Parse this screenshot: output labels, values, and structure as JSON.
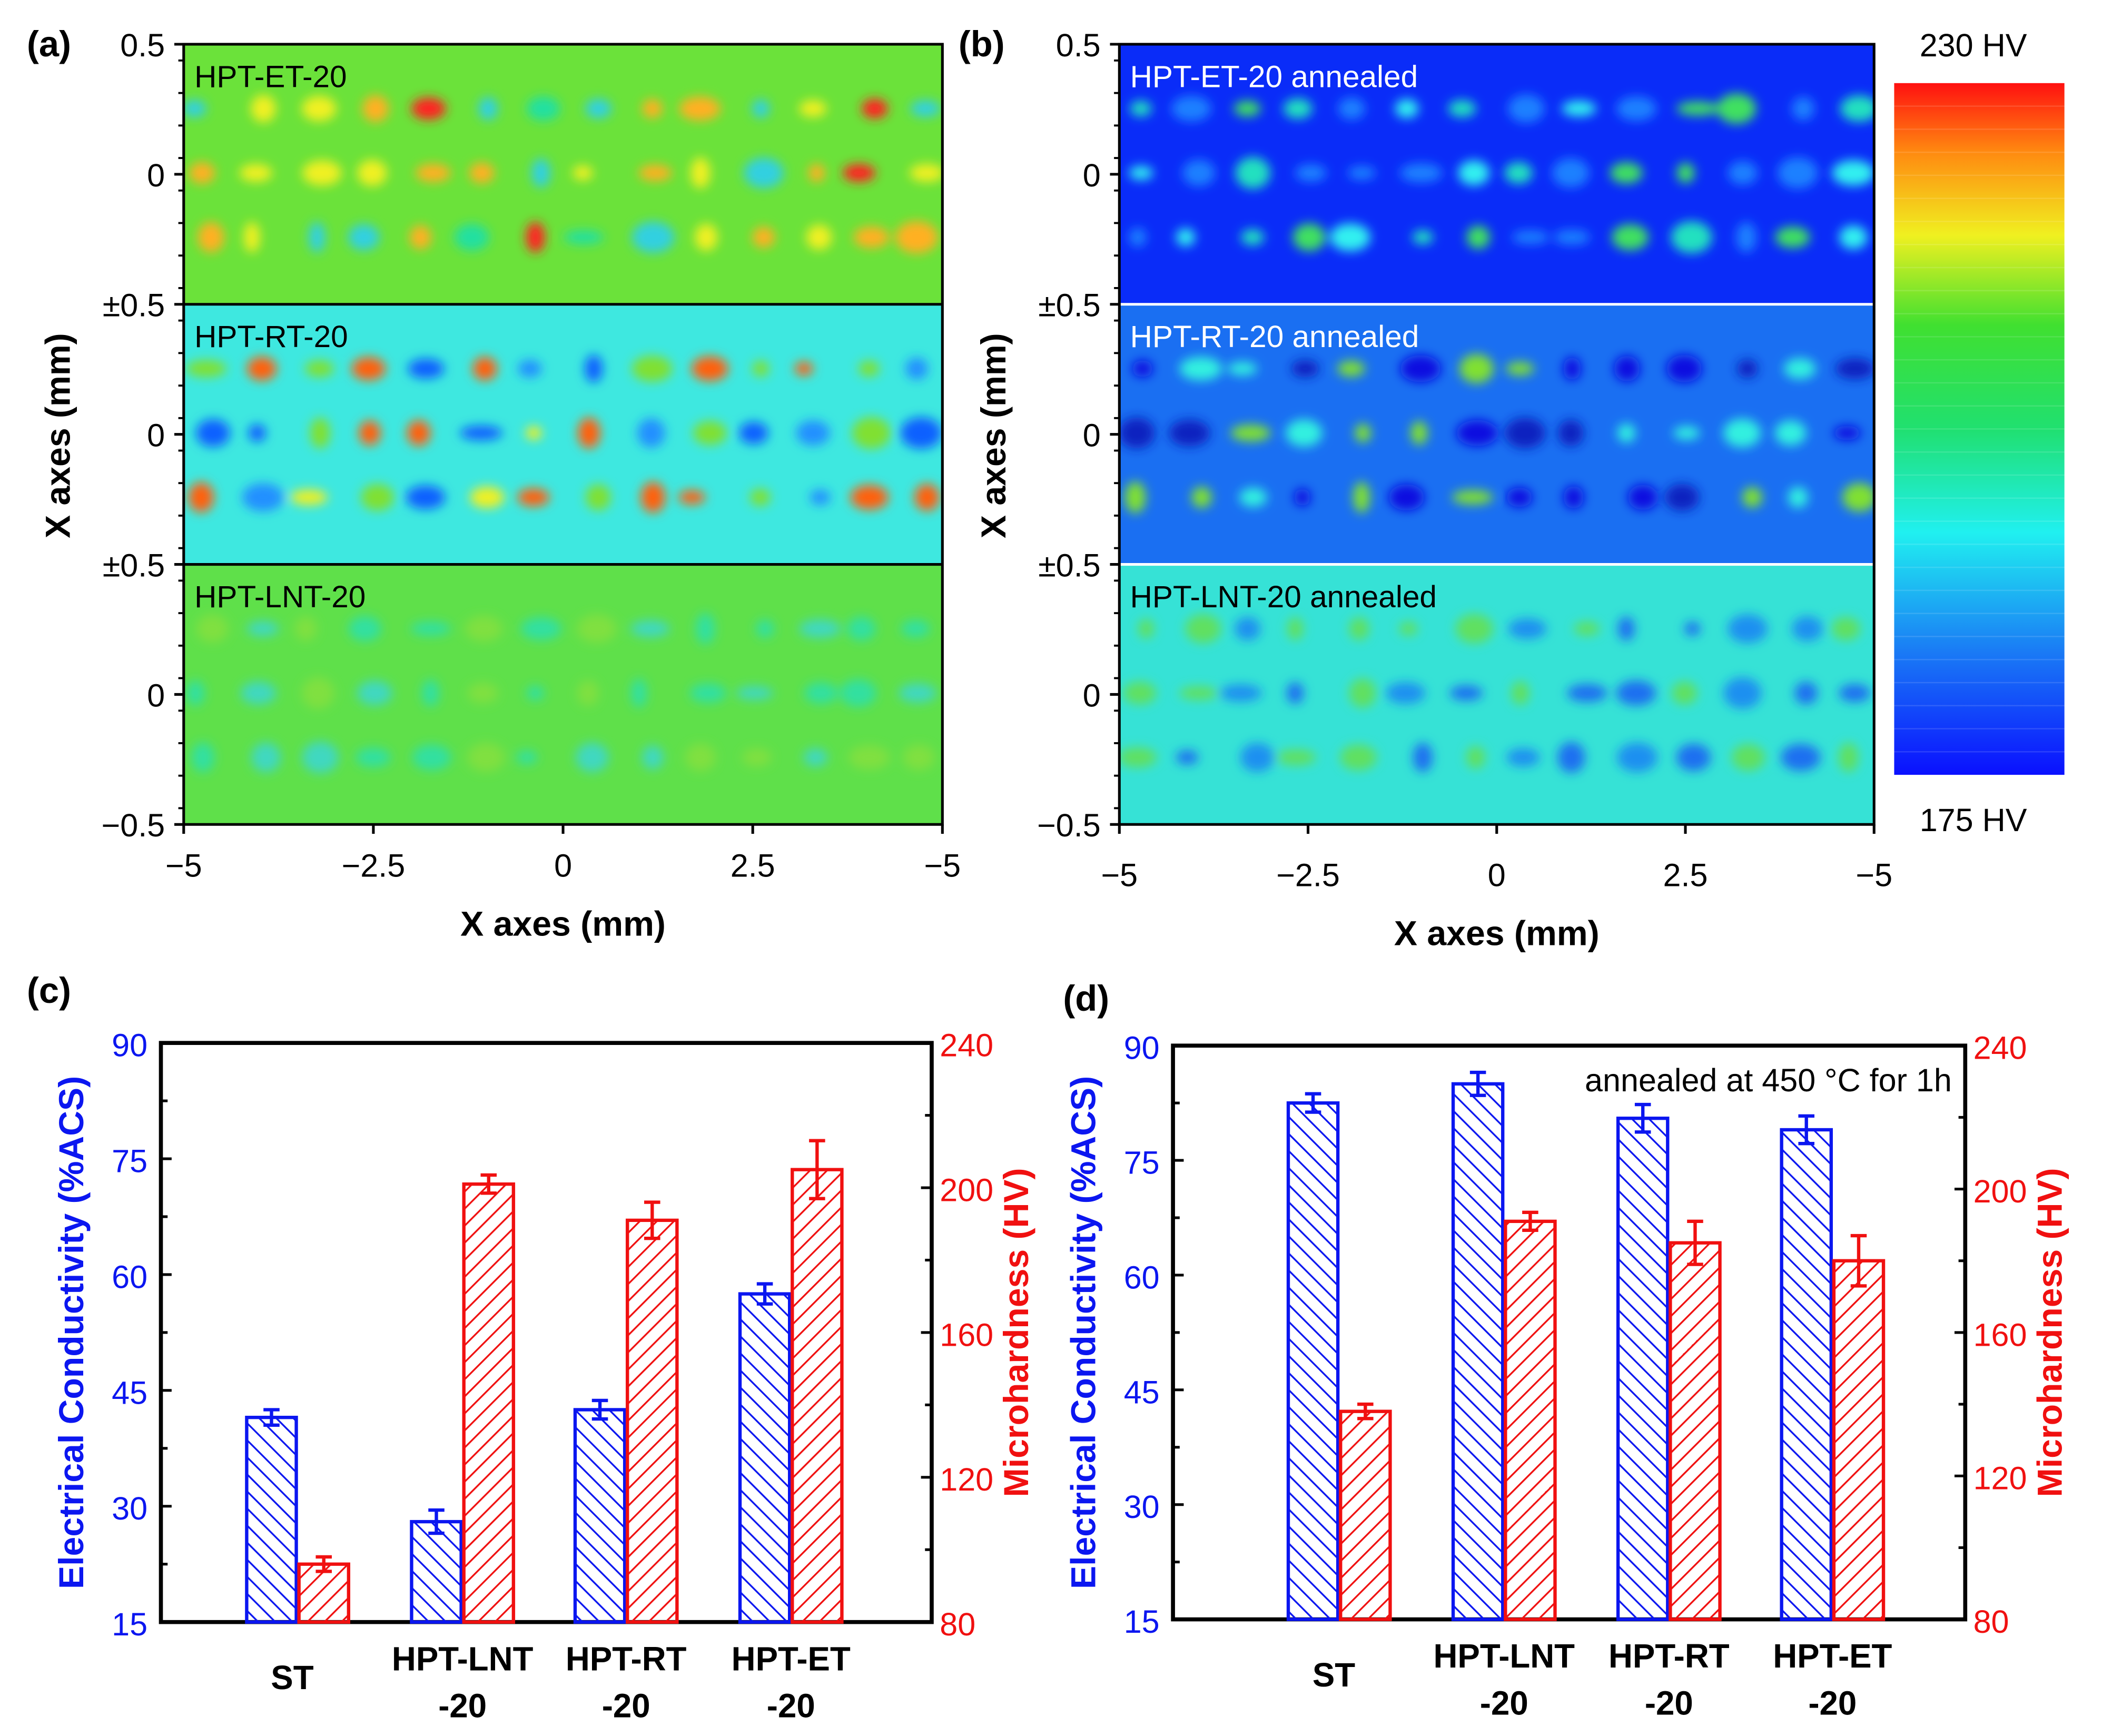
{
  "panel_labels": {
    "a": "(a)",
    "b": "(b)",
    "c": "(c)",
    "d": "(d)"
  },
  "colors": {
    "blue": "#0b16f0",
    "red": "#f01010"
  },
  "chart_data": [
    {
      "type": "heatmap",
      "panel": "a",
      "strips": [
        "HPT-ET-20",
        "HPT-RT-20",
        "HPT-LNT-20"
      ],
      "strip_colors": [
        "#6be23a",
        "#3ee8e0",
        "#5fe04a"
      ],
      "y_ticks": [
        "0.5",
        "0",
        "±0.5",
        "0",
        "±0.5",
        "0",
        "−0.5"
      ],
      "x_ticks": [
        "−5",
        "−2.5",
        "0",
        "2.5",
        "−5"
      ],
      "xlabel": "X axes (mm)",
      "ylabel": "X axes (mm)"
    },
    {
      "type": "heatmap",
      "panel": "b",
      "strips": [
        "HPT-ET-20 annealed",
        "HPT-RT-20 annealed",
        "HPT-LNT-20 annealed"
      ],
      "strip_colors": [
        "#0a2cf8",
        "#1a6ff2",
        "#36e2d6"
      ],
      "y_ticks": [
        "0.5",
        "0",
        "±0.5",
        "0",
        "±0.5",
        "0",
        "−0.5"
      ],
      "x_ticks": [
        "−5",
        "−2.5",
        "0",
        "2.5",
        "−5"
      ],
      "xlabel": "X axes (mm)",
      "ylabel": "X axes (mm)",
      "colorbar": {
        "max_label": "230 HV",
        "min_label": "175 HV",
        "range": [
          175,
          230
        ]
      }
    },
    {
      "type": "bar",
      "panel": "c",
      "categories": [
        [
          "ST"
        ],
        [
          "HPT-LNT",
          "-20"
        ],
        [
          "HPT-RT",
          "-20"
        ],
        [
          "HPT-ET",
          "-20"
        ]
      ],
      "ylabel": "Electrical Conductivity (%ACS)",
      "ylabel_right": "Microhardness (HV)",
      "ylim": [
        15,
        90
      ],
      "y_ticks": [
        "15",
        "30",
        "45",
        "60",
        "75",
        "90"
      ],
      "ylim_right": [
        80,
        240
      ],
      "y_ticks_right": [
        "80",
        "120",
        "160",
        "200",
        "240"
      ],
      "annotation": "",
      "series": [
        {
          "name": "Electrical Conductivity",
          "axis": "left",
          "values": [
            41.5,
            28,
            42.5,
            57.5
          ],
          "errors": [
            1.0,
            1.5,
            1.2,
            1.3
          ]
        },
        {
          "name": "Microhardness",
          "axis": "right",
          "values": [
            96,
            201,
            191,
            205
          ],
          "errors": [
            2,
            2.5,
            5,
            8
          ]
        }
      ]
    },
    {
      "type": "bar",
      "panel": "d",
      "categories": [
        [
          "ST"
        ],
        [
          "HPT-LNT",
          "-20"
        ],
        [
          "HPT-RT",
          "-20"
        ],
        [
          "HPT-ET",
          "-20"
        ]
      ],
      "ylabel": "Electrical Conductivity (%ACS)",
      "ylabel_right": "Microhardness (HV)",
      "ylim": [
        15,
        90
      ],
      "y_ticks": [
        "15",
        "30",
        "45",
        "60",
        "75",
        "90"
      ],
      "ylim_right": [
        80,
        240
      ],
      "y_ticks_right": [
        "80",
        "120",
        "160",
        "200",
        "240"
      ],
      "annotation": "annealed at 450 °C for 1h",
      "series": [
        {
          "name": "Electrical Conductivity",
          "axis": "left",
          "values": [
            82.5,
            85,
            80.5,
            79
          ],
          "errors": [
            1.2,
            1.5,
            1.8,
            1.8
          ]
        },
        {
          "name": "Microhardness",
          "axis": "right",
          "values": [
            138,
            191,
            185,
            180
          ],
          "errors": [
            2,
            2.5,
            6,
            7
          ]
        }
      ]
    }
  ]
}
